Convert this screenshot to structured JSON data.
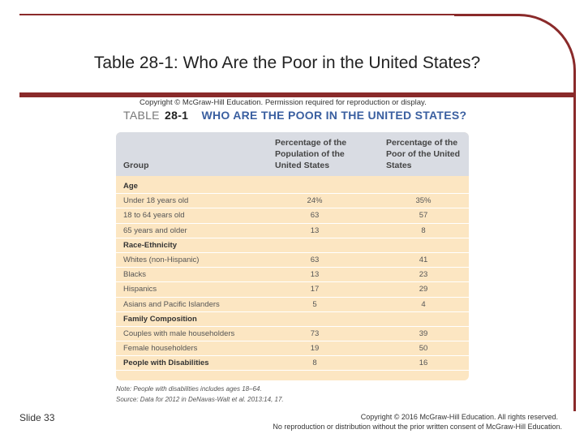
{
  "slide": {
    "title": "Table 28-1: Who Are the Poor in the United States?",
    "slide_number": "Slide 33",
    "footer_line1": "Copyright © 2016 McGraw-Hill Education. All rights reserved.",
    "footer_line2": "No reproduction or distribution without the prior written consent of McGraw-Hill Education."
  },
  "table": {
    "copyright": "Copyright © McGraw-Hill Education. Permission required for reproduction or display.",
    "label": "TABLE",
    "number": "28-1",
    "title": "WHO ARE THE POOR IN THE UNITED STATES?",
    "headers": {
      "group": "Group",
      "pct_population": "Percentage of the Population of the United States",
      "pct_poor": "Percentage of the Poor of the United States"
    },
    "rows": [
      {
        "group": "Age",
        "pop": "",
        "poor": ""
      },
      {
        "group": "Under 18 years old",
        "pop": "24%",
        "poor": "35%"
      },
      {
        "group": "18 to 64 years old",
        "pop": "63",
        "poor": "57"
      },
      {
        "group": "65 years and older",
        "pop": "13",
        "poor": "8"
      },
      {
        "group": "Race-Ethnicity",
        "pop": "",
        "poor": ""
      },
      {
        "group": "Whites (non-Hispanic)",
        "pop": "63",
        "poor": "41"
      },
      {
        "group": "Blacks",
        "pop": "13",
        "poor": "23"
      },
      {
        "group": "Hispanics",
        "pop": "17",
        "poor": "29"
      },
      {
        "group": "Asians and Pacific Islanders",
        "pop": "5",
        "poor": "4"
      },
      {
        "group": "Family Composition",
        "pop": "",
        "poor": ""
      },
      {
        "group": "Couples with male householders",
        "pop": "73",
        "poor": "39"
      },
      {
        "group": "Female householders",
        "pop": "19",
        "poor": "50"
      },
      {
        "group": "People with Disabilities",
        "pop": "8",
        "poor": "16"
      }
    ],
    "note": "Note: People with disabilities includes ages 18–64.",
    "source": "Source: Data for 2012 in DeNavas-Walt et al. 2013:14, 17."
  }
}
